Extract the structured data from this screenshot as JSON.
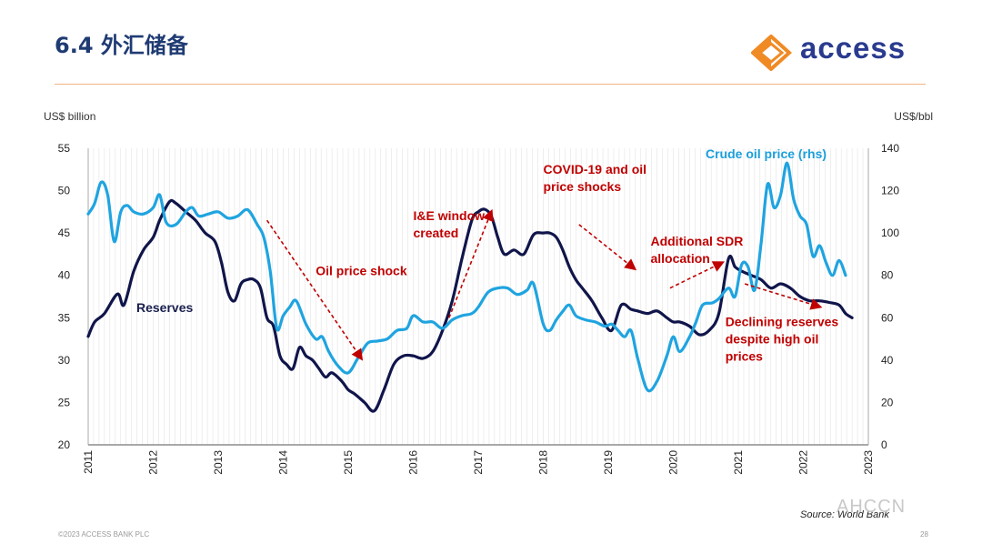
{
  "slide": {
    "title": "6.4 外汇储备",
    "logo_text": "access",
    "footer_left": "©2023 ACCESS BANK PLC",
    "page_number": "28",
    "source": "Source: World Bank",
    "watermark": "AHCCN"
  },
  "colors": {
    "reserves": "#10154a",
    "oil": "#1fa4e0",
    "annotation": "#c00000",
    "rule": "#f0b483",
    "title": "#1f3b73"
  },
  "chart_data": {
    "type": "line",
    "left_axis_label": "US$ billion",
    "right_axis_label": "US$/bbl",
    "ylim_left": [
      20,
      55
    ],
    "yticks_left": [
      20,
      25,
      30,
      35,
      40,
      45,
      50,
      55
    ],
    "ylim_right": [
      0,
      140
    ],
    "yticks_right": [
      0,
      20,
      40,
      60,
      80,
      100,
      120,
      140
    ],
    "xlim": [
      2011,
      2023
    ],
    "x_ticks": [
      "2011",
      "2012",
      "2013",
      "2014",
      "2015",
      "2016",
      "2017",
      "2018",
      "2019",
      "2020",
      "2021",
      "2022",
      "2023"
    ],
    "grid": "vertical",
    "series": [
      {
        "name": "Reserves",
        "axis": "left",
        "x": [
          2011.0,
          2011.1,
          2011.25,
          2011.45,
          2011.55,
          2011.7,
          2011.85,
          2012.0,
          2012.1,
          2012.25,
          2012.35,
          2012.5,
          2012.65,
          2012.8,
          2012.95,
          2013.05,
          2013.15,
          2013.25,
          2013.35,
          2013.45,
          2013.55,
          2013.65,
          2013.75,
          2013.85,
          2013.95,
          2014.05,
          2014.15,
          2014.25,
          2014.35,
          2014.45,
          2014.55,
          2014.65,
          2014.75,
          2014.9,
          2015.0,
          2015.1,
          2015.25,
          2015.4,
          2015.55,
          2015.7,
          2015.85,
          2016.0,
          2016.15,
          2016.3,
          2016.45,
          2016.6,
          2016.75,
          2016.9,
          2017.0,
          2017.1,
          2017.2,
          2017.3,
          2017.4,
          2017.55,
          2017.7,
          2017.85,
          2018.0,
          2018.1,
          2018.2,
          2018.3,
          2018.4,
          2018.5,
          2018.6,
          2018.75,
          2018.9,
          2019.05,
          2019.2,
          2019.35,
          2019.45,
          2019.6,
          2019.75,
          2019.9,
          2020.0,
          2020.1,
          2020.25,
          2020.4,
          2020.55,
          2020.7,
          2020.85,
          2020.95,
          2021.05,
          2021.2,
          2021.35,
          2021.5,
          2021.65,
          2021.8,
          2021.95,
          2022.1,
          2022.25,
          2022.4,
          2022.55,
          2022.65,
          2022.75
        ],
        "values": [
          32.8,
          34.5,
          35.5,
          37.8,
          36.5,
          40.5,
          43.0,
          44.5,
          46.5,
          48.7,
          48.5,
          47.5,
          46.5,
          45.0,
          44.0,
          41.5,
          38.0,
          37.0,
          39.0,
          39.5,
          39.5,
          38.5,
          35.0,
          34.0,
          30.5,
          29.5,
          29.0,
          31.5,
          30.5,
          30.0,
          29.0,
          28.0,
          28.5,
          27.5,
          26.5,
          26.0,
          25.0,
          24.0,
          26.5,
          29.5,
          30.5,
          30.5,
          30.2,
          31.0,
          33.5,
          37.0,
          42.0,
          46.5,
          47.5,
          47.8,
          47.0,
          44.5,
          42.5,
          43.0,
          42.5,
          44.8,
          45.0,
          45.0,
          44.5,
          43.0,
          41.0,
          39.5,
          38.5,
          37.0,
          35.0,
          33.5,
          36.5,
          36.0,
          35.8,
          35.5,
          35.8,
          35.0,
          34.5,
          34.5,
          34.0,
          33.0,
          33.5,
          35.5,
          42.0,
          41.0,
          40.5,
          40.0,
          39.5,
          38.5,
          39.0,
          38.5,
          37.5,
          37.0,
          37.0,
          36.8,
          36.5,
          35.5,
          35.0
        ]
      },
      {
        "name": "Crude oil price (rhs)",
        "axis": "right",
        "x": [
          2011.0,
          2011.1,
          2011.2,
          2011.3,
          2011.4,
          2011.5,
          2011.6,
          2011.7,
          2011.85,
          2012.0,
          2012.1,
          2012.2,
          2012.35,
          2012.5,
          2012.6,
          2012.7,
          2012.85,
          2013.0,
          2013.15,
          2013.3,
          2013.45,
          2013.6,
          2013.7,
          2013.8,
          2013.9,
          2014.0,
          2014.1,
          2014.2,
          2014.35,
          2014.5,
          2014.6,
          2014.7,
          2014.85,
          2015.0,
          2015.15,
          2015.3,
          2015.45,
          2015.6,
          2015.75,
          2015.9,
          2016.0,
          2016.15,
          2016.3,
          2016.45,
          2016.6,
          2016.75,
          2016.9,
          2017.0,
          2017.15,
          2017.3,
          2017.45,
          2017.6,
          2017.75,
          2017.85,
          2018.0,
          2018.1,
          2018.2,
          2018.3,
          2018.4,
          2018.5,
          2018.65,
          2018.8,
          2018.95,
          2019.05,
          2019.15,
          2019.25,
          2019.35,
          2019.45,
          2019.6,
          2019.75,
          2019.9,
          2020.0,
          2020.1,
          2020.25,
          2020.35,
          2020.45,
          2020.6,
          2020.7,
          2020.85,
          2020.95,
          2021.05,
          2021.15,
          2021.25,
          2021.35,
          2021.45,
          2021.55,
          2021.65,
          2021.75,
          2021.85,
          2021.95,
          2022.05,
          2022.15,
          2022.25,
          2022.35,
          2022.45,
          2022.55,
          2022.65
        ],
        "values": [
          109,
          114,
          124,
          118,
          96,
          110,
          113,
          110,
          109,
          112,
          118,
          105,
          104,
          110,
          112,
          108,
          109,
          110,
          107,
          108,
          111,
          104,
          98,
          82,
          55,
          61,
          65,
          68,
          57,
          50,
          51,
          44,
          37,
          34,
          41,
          48,
          49,
          50,
          54,
          55,
          61,
          58,
          58,
          55,
          59,
          61,
          62,
          65,
          72,
          74,
          74,
          71,
          73,
          76,
          57,
          54,
          59,
          63,
          66,
          61,
          59,
          58,
          56,
          57,
          54,
          51,
          54,
          41,
          26,
          30,
          42,
          51,
          44,
          51,
          58,
          66,
          67,
          69,
          74,
          70,
          85,
          84,
          73,
          95,
          123,
          112,
          118,
          133,
          116,
          108,
          104,
          89,
          94,
          86,
          80,
          87,
          80
        ]
      }
    ],
    "series_labels": {
      "reserves": "Reserves",
      "oil": "Crude oil price (rhs)"
    },
    "annotations": [
      {
        "id": "oil-price-shock",
        "lines": [
          "Oil price shock"
        ],
        "x": 2014.5,
        "y": 40.0
      },
      {
        "id": "ie-window",
        "lines": [
          "I&E window",
          "created"
        ],
        "x": 2016.0,
        "y": 46.5
      },
      {
        "id": "covid-shocks",
        "lines": [
          "COVID-19 and oil",
          "price shocks"
        ],
        "x": 2018.0,
        "y": 52.0
      },
      {
        "id": "sdr-allocation",
        "lines": [
          "Additional SDR",
          "allocation"
        ],
        "x": 2019.65,
        "y": 43.5
      },
      {
        "id": "declining-reserves",
        "lines": [
          "Declining reserves",
          "despite high oil",
          "prices"
        ],
        "x": 2020.8,
        "y": 34.0
      }
    ]
  }
}
